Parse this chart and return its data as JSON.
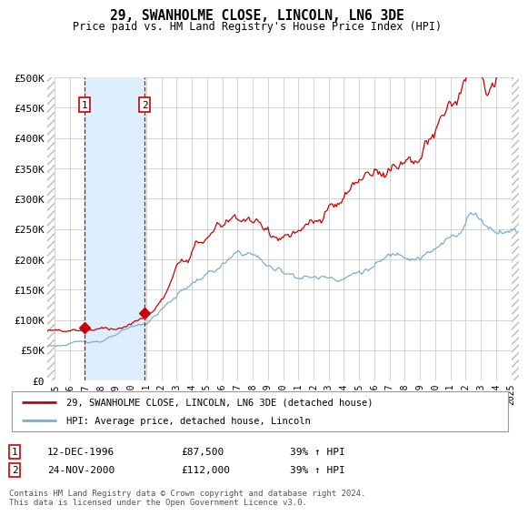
{
  "title": "29, SWANHOLME CLOSE, LINCOLN, LN6 3DE",
  "subtitle": "Price paid vs. HM Land Registry's House Price Index (HPI)",
  "xlim": [
    1994.5,
    2025.5
  ],
  "ylim": [
    0,
    500000
  ],
  "yticks": [
    0,
    50000,
    100000,
    150000,
    200000,
    250000,
    300000,
    350000,
    400000,
    450000,
    500000
  ],
  "ytick_labels": [
    "£0",
    "£50K",
    "£100K",
    "£150K",
    "£200K",
    "£250K",
    "£300K",
    "£350K",
    "£400K",
    "£450K",
    "£500K"
  ],
  "sale1_x": 1996.95,
  "sale1_y": 87500,
  "sale1_label": "1",
  "sale1_date": "12-DEC-1996",
  "sale1_price": "£87,500",
  "sale1_hpi": "39% ↑ HPI",
  "sale2_x": 2000.9,
  "sale2_y": 112000,
  "sale2_label": "2",
  "sale2_date": "24-NOV-2000",
  "sale2_price": "£112,000",
  "sale2_hpi": "39% ↑ HPI",
  "red_color": "#cc0000",
  "blue_color": "#7aaed4",
  "shading_color": "#ddeeff",
  "legend_line1": "29, SWANHOLME CLOSE, LINCOLN, LN6 3DE (detached house)",
  "legend_line2": "HPI: Average price, detached house, Lincoln",
  "footer": "Contains HM Land Registry data © Crown copyright and database right 2024.\nThis data is licensed under the Open Government Licence v3.0."
}
